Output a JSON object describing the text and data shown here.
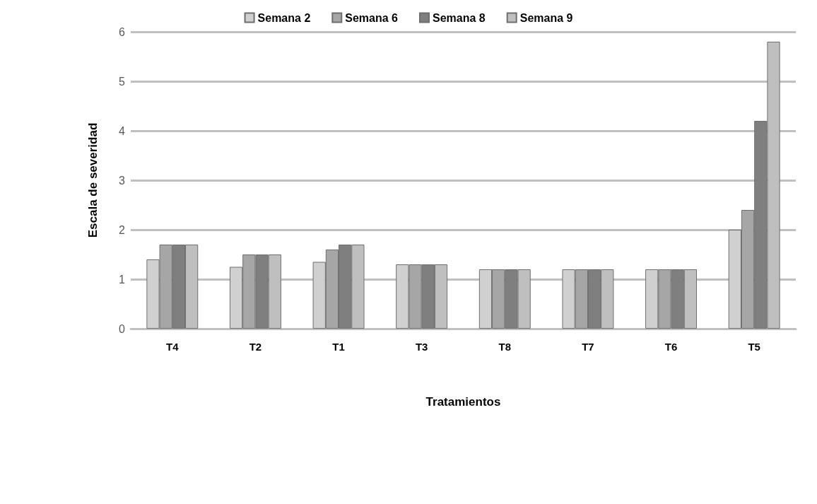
{
  "chart_data": {
    "type": "bar",
    "xlabel": "Tratamientos",
    "ylabel": "Escala de severidad",
    "categories": [
      "T4",
      "T2",
      "T1",
      "T3",
      "T8",
      "T7",
      "T6",
      "T5"
    ],
    "series": [
      {
        "name": "Semana 2",
        "color": "#d0d0d0",
        "values": [
          1.4,
          1.25,
          1.35,
          1.3,
          1.2,
          1.2,
          1.2,
          2.0
        ]
      },
      {
        "name": "Semana 6",
        "color": "#a6a6a6",
        "values": [
          1.7,
          1.5,
          1.6,
          1.3,
          1.2,
          1.2,
          1.2,
          2.4
        ]
      },
      {
        "name": "Semana 8",
        "color": "#7f7f7f",
        "values": [
          1.7,
          1.5,
          1.7,
          1.3,
          1.2,
          1.2,
          1.2,
          4.2
        ]
      },
      {
        "name": "Semana 9",
        "color": "#bfbfbf",
        "values": [
          1.7,
          1.5,
          1.7,
          1.3,
          1.2,
          1.2,
          1.2,
          5.8
        ]
      }
    ],
    "ylim": [
      0,
      6
    ],
    "yticks": [
      0,
      1,
      2,
      3,
      4,
      5,
      6
    ],
    "grid": "y",
    "legend": "top"
  }
}
